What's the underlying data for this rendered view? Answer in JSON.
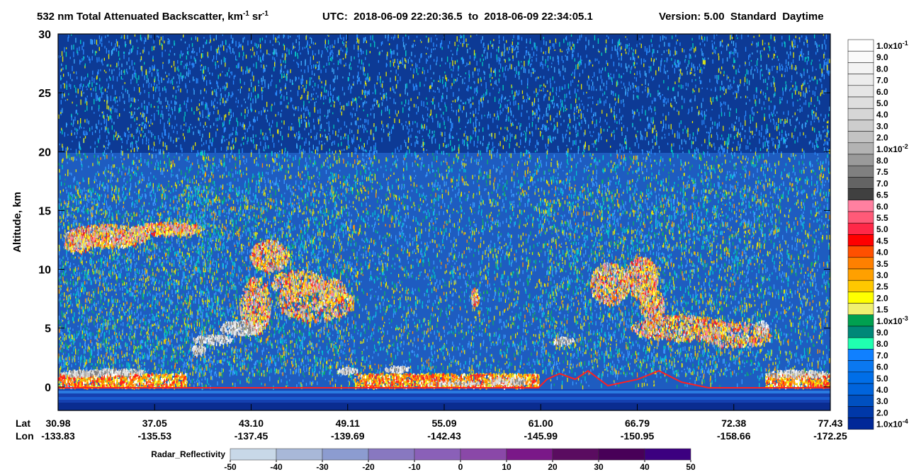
{
  "chart_data": {
    "type": "curtain",
    "title": {
      "text": "532 nm Total Attenuated Backscatter, km",
      "exp1": "-1",
      "unit2": "sr",
      "exp2": "-1",
      "utc": "UTC:  2018-06-09 22:20:36.5  to  2018-06-09 22:34:05.1",
      "version": "Version: 5.00  Standard  Daytime"
    },
    "y_label": "Altitude, km",
    "ylim": [
      -2,
      30
    ],
    "yticks": [
      0,
      5,
      10,
      15,
      20,
      25,
      30
    ],
    "x_axis": {
      "lat_label": "Lat",
      "lon_label": "Lon",
      "lat": [
        30.98,
        37.05,
        {
          "value": 43.1,
          "label": "43.10"
        },
        49.11,
        55.09,
        {
          "value": 61,
          "label": "61.00"
        },
        66.79,
        72.38,
        77.43
      ],
      "lon": [
        -133.83,
        -135.53,
        -137.45,
        -139.69,
        -142.43,
        -145.99,
        -150.95,
        -158.66,
        -172.25
      ]
    },
    "colorbar": {
      "labels": [
        {
          "mantissa": "1.0x10",
          "exp": "-1"
        },
        "9.0",
        "8.0",
        "7.0",
        "6.0",
        "5.0",
        "4.0",
        "3.0",
        "2.0",
        {
          "mantissa": "1.0x10",
          "exp": "-2"
        },
        "8.0",
        "7.5",
        "7.0",
        "6.5",
        "6.0",
        "5.5",
        "5.0",
        "4.5",
        "4.0",
        "3.5",
        "3.0",
        "2.5",
        "2.0",
        "1.5",
        {
          "mantissa": "1.0x10",
          "exp": "-3"
        },
        "9.0",
        "8.0",
        "7.0",
        "6.0",
        "5.0",
        "4.0",
        "3.0",
        "2.0",
        {
          "mantissa": "1.0x10",
          "exp": "-4"
        }
      ],
      "colors": [
        "#ffffff",
        "#fafafa",
        "#f3f3f3",
        "#ececec",
        "#e5e5e5",
        "#dedede",
        "#d6d6d6",
        "#cdcdcd",
        "#c3c3c3",
        "#b3b3b3",
        "#9a9a9a",
        "#808080",
        "#646464",
        "#404040",
        "#ff80a0",
        "#ff5a78",
        "#ff2848",
        "#ff0000",
        "#ff5000",
        "#ff8000",
        "#ffa000",
        "#ffc800",
        "#ffff00",
        "#f0f070",
        "#00a050",
        "#008878",
        "#20ffb0",
        "#1080ff",
        "#0a78f0",
        "#006ee8",
        "#0064dc",
        "#0050c0",
        "#0038a8",
        "#002898"
      ]
    },
    "radar": {
      "label": "Radar_Reflectivity",
      "ticks": [
        -50,
        -40,
        -30,
        -20,
        -10,
        0,
        10,
        20,
        30,
        40,
        50
      ],
      "colors": [
        "#c8d8e8",
        "#a8b8d8",
        "#8c9cd0",
        "#8878c0",
        "#8a60b8",
        "#8a48a8",
        "#7a1888",
        "#5a0c60",
        "#480058",
        "#3c0080"
      ]
    }
  }
}
